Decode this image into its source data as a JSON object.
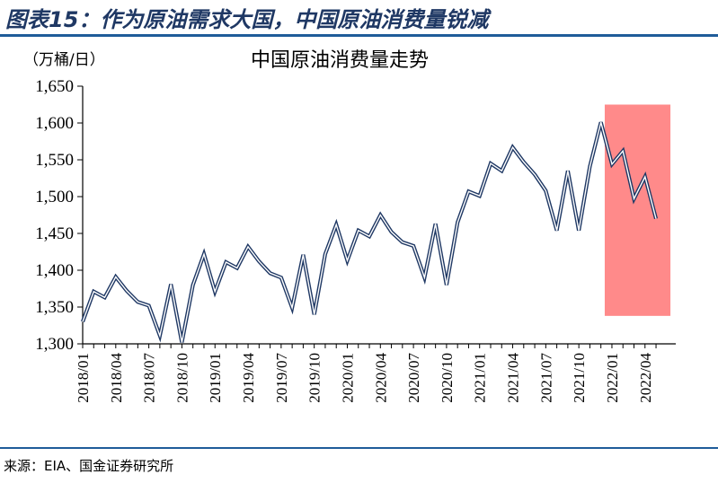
{
  "figure": {
    "title": "图表15：作为原油需求大国，中国原油消费量锐减",
    "source": "来源：EIA、国金证券研究所"
  },
  "chart_data": {
    "type": "line",
    "title": "中国原油消费量走势",
    "ylabel": "（万桶/日）",
    "xlabel": "",
    "ylim": [
      1300,
      1650
    ],
    "yticks": [
      1300,
      1350,
      1400,
      1450,
      1500,
      1550,
      1600,
      1650
    ],
    "ytick_labels": [
      "1,300",
      "1,350",
      "1,400",
      "1,450",
      "1,500",
      "1,550",
      "1,600",
      "1,650"
    ],
    "x_tick_labels": [
      "2018/01",
      "2018/04",
      "2018/07",
      "2018/10",
      "2019/01",
      "2019/04",
      "2019/07",
      "2019/10",
      "2020/01",
      "2020/04",
      "2020/07",
      "2020/10",
      "2021/01",
      "2021/04",
      "2021/07",
      "2021/10",
      "2022/01",
      "2022/04"
    ],
    "x": [
      "2018/01",
      "2018/02",
      "2018/03",
      "2018/04",
      "2018/05",
      "2018/06",
      "2018/07",
      "2018/08",
      "2018/09",
      "2018/10",
      "2018/11",
      "2018/12",
      "2019/01",
      "2019/02",
      "2019/03",
      "2019/04",
      "2019/05",
      "2019/06",
      "2019/07",
      "2019/08",
      "2019/09",
      "2019/10",
      "2019/11",
      "2019/12",
      "2020/01",
      "2020/02",
      "2020/03",
      "2020/04",
      "2020/05",
      "2020/06",
      "2020/07",
      "2020/08",
      "2020/09",
      "2020/10",
      "2020/11",
      "2020/12",
      "2021/01",
      "2021/02",
      "2021/03",
      "2021/04",
      "2021/05",
      "2021/06",
      "2021/07",
      "2021/08",
      "2021/09",
      "2021/10",
      "2021/11",
      "2021/12",
      "2022/01",
      "2022/02",
      "2022/03",
      "2022/04",
      "2022/05"
    ],
    "series": [
      {
        "values": [
          1330,
          1371,
          1363,
          1391,
          1372,
          1357,
          1352,
          1311,
          1381,
          1302,
          1380,
          1422,
          1371,
          1411,
          1403,
          1432,
          1412,
          1396,
          1390,
          1349,
          1421,
          1340,
          1422,
          1462,
          1413,
          1454,
          1446,
          1475,
          1452,
          1438,
          1433,
          1390,
          1463,
          1380,
          1465,
          1507,
          1501,
          1545,
          1535,
          1567,
          1547,
          1530,
          1508,
          1454,
          1535,
          1454,
          1541,
          1601,
          1544,
          1562,
          1497,
          1527,
          1470
        ],
        "color": "#1f3864"
      }
    ],
    "line_style": "double outline (dark navy with white core)",
    "highlight": {
      "from": "2022/01",
      "to": "2022/05",
      "ymin": 1338,
      "ymax": 1625,
      "color": "#ff8a8a"
    },
    "grid": false,
    "legend": "none"
  }
}
